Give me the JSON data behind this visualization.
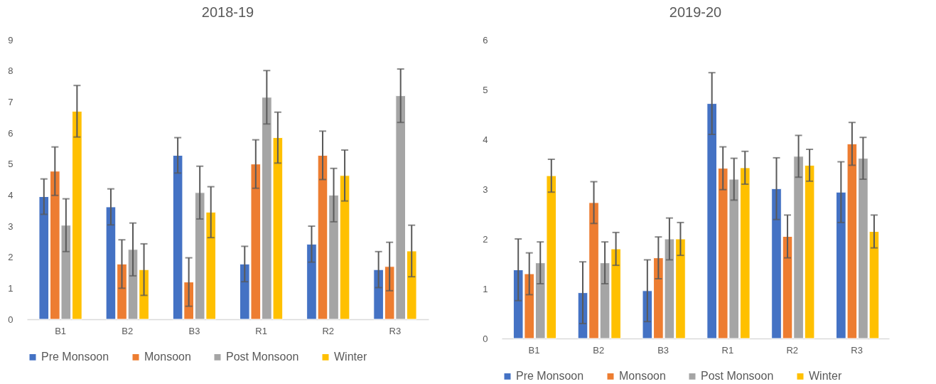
{
  "chart_data": [
    {
      "type": "bar",
      "title": "2018-19",
      "categories": [
        "B1",
        "B2",
        "B3",
        "R1",
        "R2",
        "R3"
      ],
      "ylim": [
        0,
        9
      ],
      "yticks": [
        0,
        1,
        2,
        3,
        4,
        5,
        6,
        7,
        8,
        9
      ],
      "legend": "bottom",
      "series": [
        {
          "name": "Pre Monsoon",
          "color": "#4472c4",
          "values": [
            3.95,
            3.62,
            5.28,
            1.78,
            2.42,
            1.6
          ],
          "errors": [
            0.57,
            0.58,
            0.57,
            0.57,
            0.58,
            0.58
          ]
        },
        {
          "name": "Monsoon",
          "color": "#ed7d31",
          "values": [
            4.77,
            1.78,
            1.2,
            5.0,
            5.28,
            1.7
          ],
          "errors": [
            0.78,
            0.78,
            0.78,
            0.78,
            0.78,
            0.78
          ]
        },
        {
          "name": "Post Monsoon",
          "color": "#a5a5a5",
          "values": [
            3.03,
            2.25,
            4.08,
            7.15,
            4.0,
            7.2
          ],
          "errors": [
            0.85,
            0.85,
            0.85,
            0.86,
            0.86,
            0.86
          ]
        },
        {
          "name": "Winter",
          "color": "#ffc000",
          "values": [
            6.7,
            1.6,
            3.45,
            5.85,
            4.63,
            2.2
          ],
          "errors": [
            0.83,
            0.83,
            0.82,
            0.82,
            0.82,
            0.83
          ]
        }
      ]
    },
    {
      "type": "bar",
      "title": "2019-20",
      "categories": [
        "B1",
        "B2",
        "B3",
        "R1",
        "R2",
        "R3"
      ],
      "ylim": [
        0,
        6
      ],
      "yticks": [
        0,
        1,
        2,
        3,
        4,
        5,
        6
      ],
      "legend": "bottom",
      "series": [
        {
          "name": "Pre Monsoon",
          "color": "#4472c4",
          "values": [
            1.38,
            0.92,
            0.96,
            4.72,
            3.01,
            2.94
          ],
          "errors": [
            0.62,
            0.62,
            0.62,
            0.62,
            0.62,
            0.61
          ]
        },
        {
          "name": "Monsoon",
          "color": "#ed7d31",
          "values": [
            1.3,
            2.73,
            1.62,
            3.42,
            2.05,
            3.91
          ],
          "errors": [
            0.42,
            0.42,
            0.42,
            0.43,
            0.43,
            0.43
          ]
        },
        {
          "name": "Post Monsoon",
          "color": "#a5a5a5",
          "values": [
            1.52,
            1.52,
            2.0,
            3.2,
            3.66,
            3.62
          ],
          "errors": [
            0.42,
            0.42,
            0.42,
            0.42,
            0.42,
            0.42
          ]
        },
        {
          "name": "Winter",
          "color": "#ffc000",
          "values": [
            3.27,
            1.8,
            2.0,
            3.43,
            3.48,
            2.15
          ],
          "errors": [
            0.33,
            0.33,
            0.33,
            0.33,
            0.32,
            0.33
          ]
        }
      ]
    }
  ]
}
